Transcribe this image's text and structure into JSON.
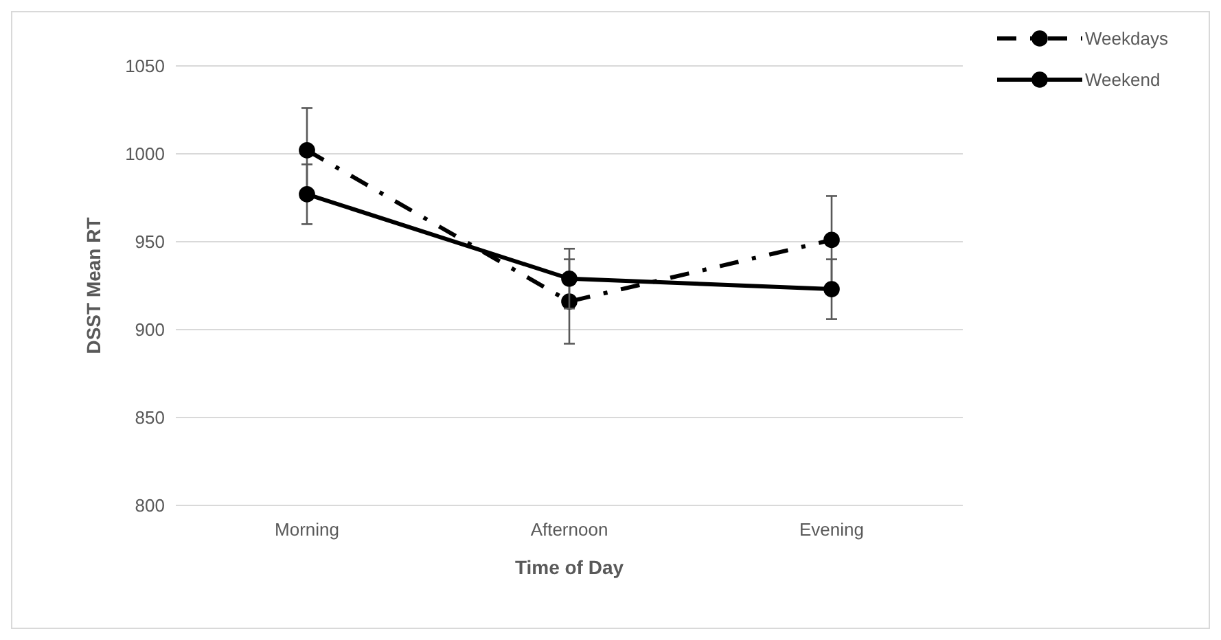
{
  "chart_data": {
    "type": "line",
    "xlabel": "Time of Day",
    "ylabel": "DSST Mean RT",
    "categories": [
      "Morning",
      "Afternoon",
      "Evening"
    ],
    "series": [
      {
        "name": "Weekdays",
        "color": "#000000",
        "values": [
          1002,
          916,
          951
        ],
        "errors": [
          24,
          24,
          25
        ],
        "line_style": "dashed"
      },
      {
        "name": "Weekend",
        "color": "#000000",
        "values": [
          977,
          929,
          923
        ],
        "errors": [
          17,
          17,
          17
        ],
        "line_style": "solid"
      }
    ],
    "ylim": [
      800,
      1050
    ],
    "yticks": [
      800,
      850,
      900,
      950,
      1000,
      1050
    ],
    "grid": "y",
    "legend": "top right",
    "marker": "circle"
  }
}
